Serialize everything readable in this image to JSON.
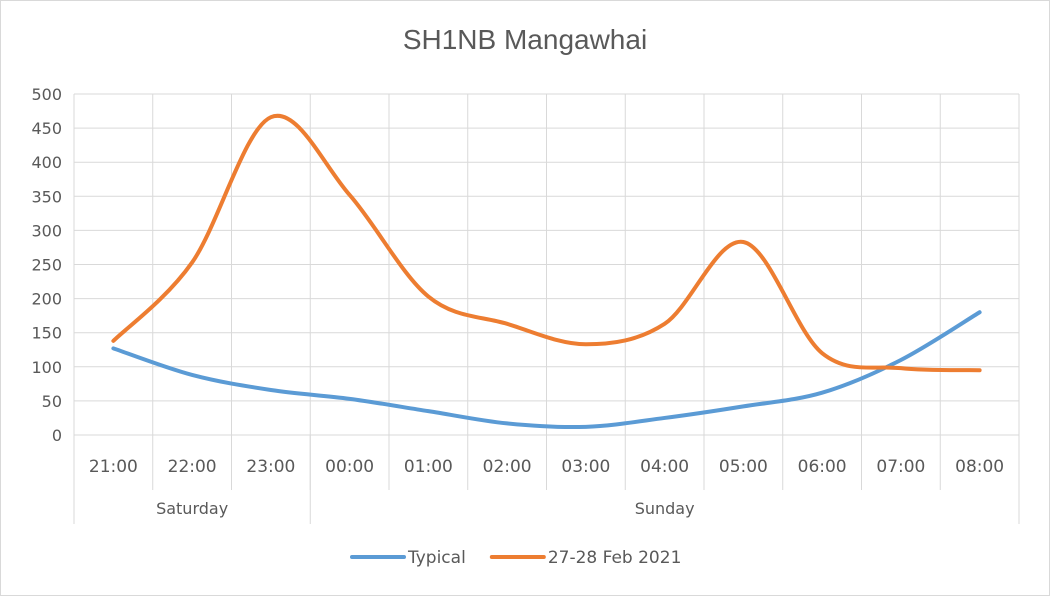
{
  "chart_data": {
    "type": "line",
    "title": "SH1NB Mangawhai",
    "xlabel": "",
    "ylabel": "",
    "categories": [
      "21:00",
      "22:00",
      "23:00",
      "00:00",
      "01:00",
      "02:00",
      "03:00",
      "04:00",
      "05:00",
      "06:00",
      "07:00",
      "08:00"
    ],
    "category_groups": [
      {
        "label": "Saturday",
        "span": 3
      },
      {
        "label": "Sunday",
        "span": 9
      }
    ],
    "series": [
      {
        "name": "Typical",
        "color": "#5b9bd5",
        "values": [
          127,
          88,
          66,
          53,
          35,
          17,
          12,
          25,
          42,
          62,
          110,
          180
        ]
      },
      {
        "name": "27-28 Feb 2021",
        "color": "#ed7d31",
        "values": [
          138,
          253,
          466,
          352,
          203,
          163,
          133,
          163,
          283,
          120,
          98,
          95
        ]
      }
    ],
    "ylim": [
      0,
      500
    ],
    "yticks": [
      "0",
      "50",
      "100",
      "150",
      "200",
      "250",
      "300",
      "350",
      "400",
      "450",
      "500"
    ],
    "grid": true,
    "smooth": true,
    "legend_position": "bottom"
  }
}
